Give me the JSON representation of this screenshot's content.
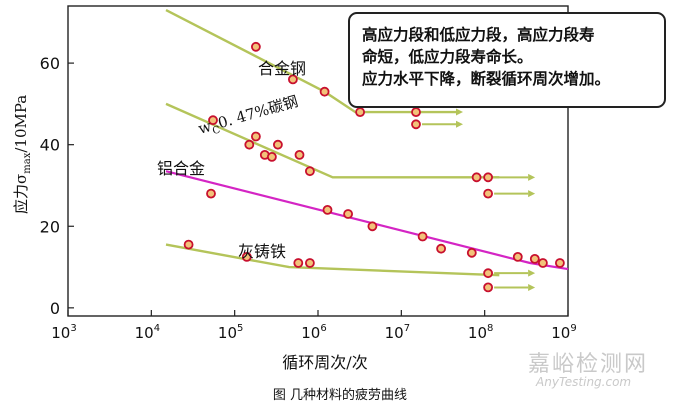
{
  "chart_data": {
    "type": "scatter",
    "x_scale": "log",
    "xlim": [
      1000,
      1000000000
    ],
    "ylim": [
      -2,
      74
    ],
    "x_ticks": [
      {
        "base": "10",
        "exp": "3",
        "value": 1000
      },
      {
        "base": "10",
        "exp": "4",
        "value": 10000
      },
      {
        "base": "10",
        "exp": "5",
        "value": 100000
      },
      {
        "base": "10",
        "exp": "6",
        "value": 1000000
      },
      {
        "base": "10",
        "exp": "7",
        "value": 10000000
      },
      {
        "base": "10",
        "exp": "8",
        "value": 100000000
      },
      {
        "base": "10",
        "exp": "9",
        "value": 1000000000
      }
    ],
    "y_ticks": [
      "0",
      "20",
      "40",
      "60"
    ],
    "xlabel": "循环周次/次",
    "ylabel": "应力σmax/10MPa",
    "caption": "图  几种材料的疲劳曲线",
    "series": [
      {
        "name": "合金钢",
        "color": "#b4c45a",
        "curve": [
          [
            15000,
            73
          ],
          [
            1200000,
            53
          ],
          [
            2800000,
            48
          ],
          [
            50000000,
            48
          ]
        ],
        "points": [
          [
            180000,
            64
          ],
          [
            500000,
            56
          ],
          [
            1200000,
            53
          ],
          [
            3200000,
            48
          ],
          [
            15000000,
            48
          ],
          [
            15000000,
            45
          ]
        ],
        "runouts": [
          [
            15000000,
            48
          ],
          [
            15000000,
            45
          ]
        ]
      },
      {
        "name": "wC0.47%碳钢",
        "color": "#b4c45a",
        "curve": [
          [
            15000,
            50
          ],
          [
            1500000,
            32
          ],
          [
            150000000,
            32
          ]
        ],
        "points": [
          [
            55000,
            46
          ],
          [
            150000,
            40
          ],
          [
            180000,
            42
          ],
          [
            230000,
            37.5
          ],
          [
            280000,
            37
          ],
          [
            330000,
            40
          ],
          [
            600000,
            37.5
          ],
          [
            800000,
            33.5
          ],
          [
            80000000,
            32
          ],
          [
            110000000,
            32
          ],
          [
            110000000,
            28
          ]
        ],
        "runouts": [
          [
            110000000,
            32
          ],
          [
            110000000,
            28
          ]
        ]
      },
      {
        "name": "铝合金",
        "color": "#d425c4",
        "curve": [
          [
            15000,
            33.5
          ],
          [
            350000000,
            11
          ],
          [
            1000000000,
            9.5
          ]
        ],
        "points": [
          [
            52000,
            28
          ],
          [
            1300000,
            24
          ],
          [
            2300000,
            23
          ],
          [
            4500000,
            20
          ],
          [
            18000000,
            17.5
          ],
          [
            30000000,
            14.5
          ],
          [
            70000000,
            13.5
          ],
          [
            250000000,
            12.5
          ],
          [
            400000000,
            12
          ],
          [
            500000000,
            11
          ],
          [
            800000000,
            11
          ]
        ],
        "runouts": []
      },
      {
        "name": "灰铸铁",
        "color": "#b4c45a",
        "curve": [
          [
            15000,
            15.5
          ],
          [
            450000,
            10
          ],
          [
            150000000,
            8
          ]
        ],
        "points": [
          [
            28000,
            15.5
          ],
          [
            140000,
            12.5
          ],
          [
            580000,
            11
          ],
          [
            800000,
            11
          ],
          [
            110000000,
            8.5
          ],
          [
            110000000,
            5
          ]
        ],
        "runouts": [
          [
            110000000,
            8.5
          ],
          [
            110000000,
            5
          ]
        ]
      }
    ]
  },
  "note_lines": [
    "高应力段和低应力段，高应力段寿",
    "命短，低应力段寿命长。",
    "应力水平下降，断裂循环周次增加。"
  ],
  "watermark": {
    "name": "嘉峪检测网",
    "url": "AnyTesting.com"
  },
  "colors": {
    "point_fill": "#f2c27a",
    "point_stroke": "#c8102e",
    "axis": "#222222"
  }
}
